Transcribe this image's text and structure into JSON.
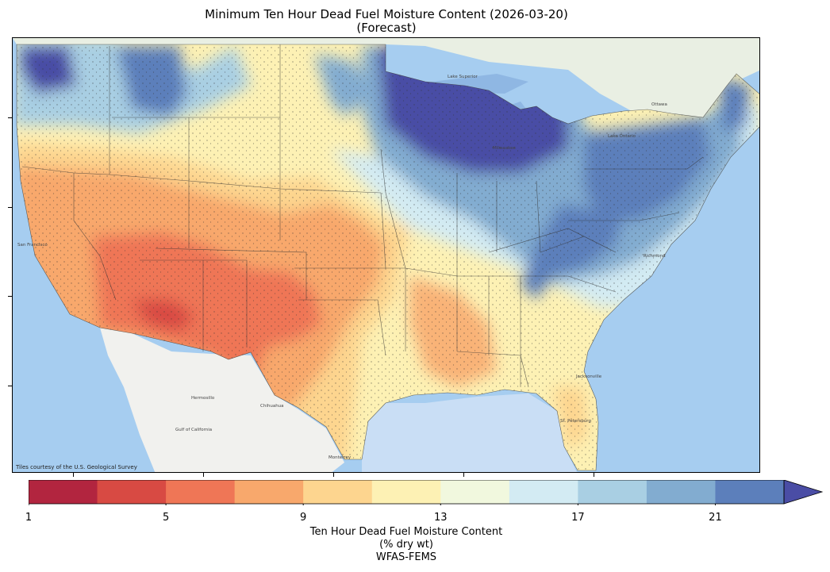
{
  "title_line1": "Minimum Ten Hour Dead Fuel Moisture Content (2026-03-20)",
  "title_line2": "(Forecast)",
  "attribution": "Tiles courtesy of the U.S. Geological Survey",
  "colorbar": {
    "title_line1": "Ten Hour Dead Fuel Moisture Content",
    "title_line2": "(% dry wt)",
    "title_line3": "WFAS-FEMS",
    "ticks": [
      "1",
      "5",
      "9",
      "13",
      "17",
      "21"
    ],
    "range": [
      1,
      23
    ],
    "extend": "max",
    "colors": [
      "#b2253f",
      "#d84a43",
      "#ef7656",
      "#f8a86c",
      "#fdd58f",
      "#fdf1b4",
      "#f1f8de",
      "#d3ebf3",
      "#a9cfe3",
      "#82acd0",
      "#5c7fbb",
      "#4a4da5"
    ]
  },
  "map_colors": {
    "ocean": "#9cc7ee",
    "land": "#eef1ea",
    "great_lakes": "#8fb7e3",
    "state_lines": "#333333"
  },
  "map_labels": {
    "san_francisco": "San Francisco",
    "hermosillo": "Hermosillo",
    "chihuahua": "Chihuahua",
    "monterrey": "Monterrey",
    "gulf_of_california": "Gulf of California",
    "lake_superior": "Lake Superior",
    "milwaukee": "Milwaukee",
    "lake_ontario": "Lake Ontario",
    "ottawa": "Ottawa",
    "richmond": "Richmond",
    "jacksonville": "Jacksonville",
    "st_petersburg": "St. Petersburg"
  }
}
